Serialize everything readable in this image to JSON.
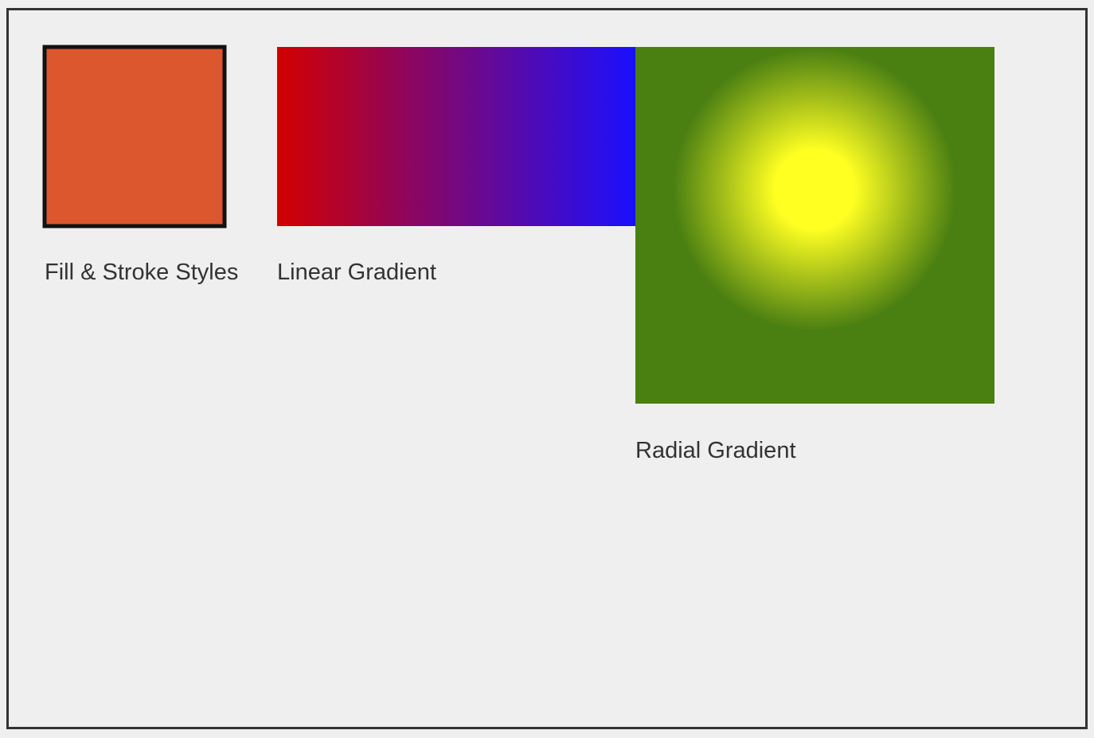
{
  "labels": {
    "fill_stroke": "Fill & Stroke Styles",
    "linear": "Linear Gradient",
    "radial": "Radial Gradient"
  },
  "colors": {
    "background": "#efefef",
    "frame": "#333333",
    "fill": "#dd572e",
    "stroke": "#111111",
    "linear_start": "#d10000",
    "linear_end": "#1a0fff",
    "radial_inner": "#ffff22",
    "radial_outer": "#4a7f12"
  }
}
